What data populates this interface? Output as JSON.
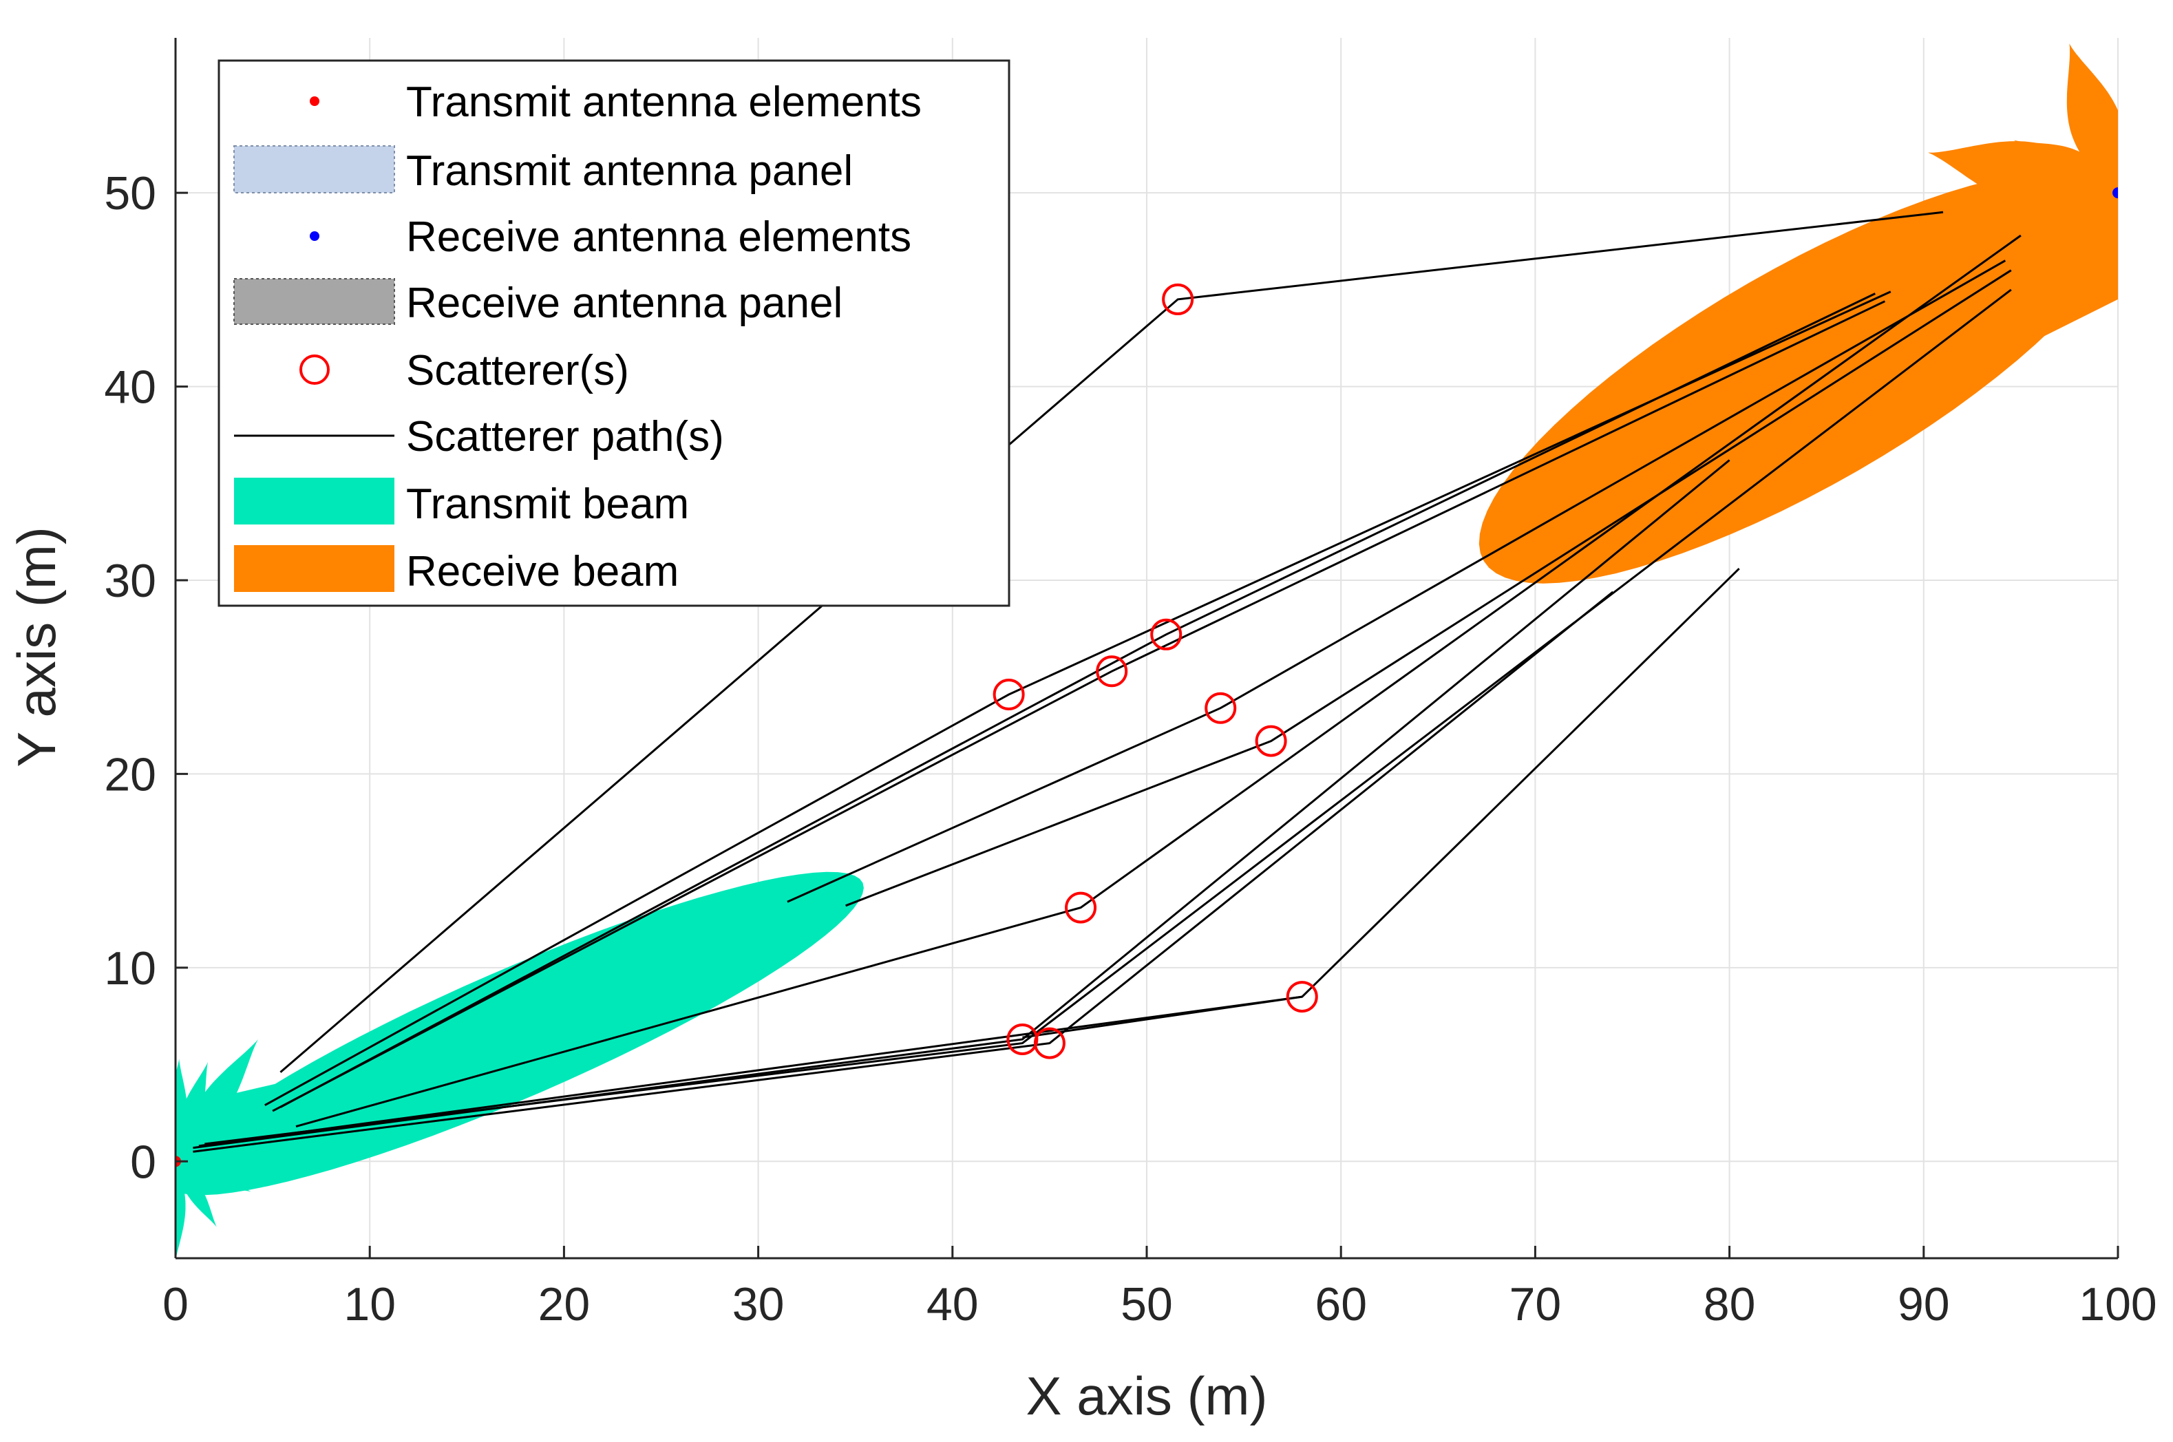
{
  "chart_data": {
    "type": "scatter",
    "title": "",
    "xlabel": "X axis (m)",
    "ylabel": "Y axis (m)",
    "xlim": [
      0,
      100
    ],
    "ylim": [
      -5,
      58
    ],
    "xticks": [
      0,
      10,
      20,
      30,
      40,
      50,
      60,
      70,
      80,
      90,
      100
    ],
    "yticks": [
      0,
      10,
      20,
      30,
      40,
      50
    ],
    "grid": true,
    "legend_position": "top-left",
    "colors": {
      "transmit_element": "#ff0000",
      "transmit_panel": "#c5d3ea",
      "receive_element": "#0000ff",
      "receive_panel": "#a6a6a6",
      "scatterer": "#ff0000",
      "path": "#000000",
      "transmit_beam": "#00e8b8",
      "receive_beam": "#ff8400",
      "grid": "#e2e2e2",
      "axis": "#262626"
    },
    "legend": [
      {
        "key": "tx_elements",
        "label": "Transmit antenna elements"
      },
      {
        "key": "tx_panel",
        "label": "Transmit antenna panel"
      },
      {
        "key": "rx_elements",
        "label": "Receive antenna elements"
      },
      {
        "key": "rx_panel",
        "label": "Receive antenna panel"
      },
      {
        "key": "scatterers",
        "label": "Scatterer(s)"
      },
      {
        "key": "paths",
        "label": "Scatterer path(s)"
      },
      {
        "key": "tx_beam",
        "label": "Transmit beam"
      },
      {
        "key": "rx_beam",
        "label": "Receive beam"
      }
    ],
    "transmit_antenna": {
      "x": 0,
      "y": 0
    },
    "receive_antenna": {
      "x": 100,
      "y": 50
    },
    "scatterers": [
      {
        "x": 51.6,
        "y": 44.5
      },
      {
        "x": 51.0,
        "y": 27.2
      },
      {
        "x": 48.2,
        "y": 25.3
      },
      {
        "x": 42.9,
        "y": 24.1
      },
      {
        "x": 53.8,
        "y": 23.4
      },
      {
        "x": 56.4,
        "y": 21.7
      },
      {
        "x": 46.6,
        "y": 13.1
      },
      {
        "x": 58.0,
        "y": 8.5
      },
      {
        "x": 43.6,
        "y": 6.3
      },
      {
        "x": 45.0,
        "y": 6.1
      }
    ],
    "paths": [
      {
        "from": [
          5.4,
          4.6
        ],
        "via": [
          51.6,
          44.5
        ],
        "to": [
          91.0,
          49.0
        ]
      },
      {
        "from": [
          4.6,
          2.9
        ],
        "via": [
          42.9,
          24.1
        ],
        "to": [
          88.3,
          44.9
        ]
      },
      {
        "from": [
          5.0,
          2.6
        ],
        "via": [
          48.2,
          25.3
        ],
        "to": [
          88.0,
          44.4
        ]
      },
      {
        "from": [
          5.4,
          2.8
        ],
        "via": [
          51.0,
          27.2
        ],
        "to": [
          87.5,
          44.8
        ]
      },
      {
        "from": [
          6.2,
          1.8
        ],
        "via": [
          46.6,
          13.1
        ],
        "to": [
          95.0,
          47.8
        ]
      },
      {
        "from": [
          31.5,
          13.4
        ],
        "via": [
          53.8,
          23.4
        ],
        "to": [
          94.2,
          46.5
        ]
      },
      {
        "from": [
          34.5,
          13.2
        ],
        "via": [
          56.4,
          21.7
        ],
        "to": [
          94.5,
          46.0
        ]
      },
      {
        "from": [
          0.9,
          0.7
        ],
        "via": [
          43.6,
          6.3
        ],
        "to": [
          80.0,
          36.2
        ]
      },
      {
        "from": [
          0.9,
          0.5
        ],
        "via": [
          45.0,
          6.1
        ],
        "to": [
          74.0,
          29.4
        ]
      },
      {
        "from": [
          1.5,
          0.9
        ],
        "via": [
          43.6,
          6.1
        ],
        "to": [
          94.5,
          45.0
        ]
      },
      {
        "from": [
          1.2,
          0.8
        ],
        "via": [
          58.0,
          8.5
        ],
        "to": [
          80.5,
          30.6
        ]
      },
      {
        "from": [
          43.6,
          6.4
        ],
        "via": [
          58.0,
          8.5
        ],
        "to": [
          58.0,
          8.5
        ]
      }
    ],
    "transmit_beam": {
      "main_lobe": {
        "center": [
          17.5,
          6.6
        ],
        "half_length": 19.5,
        "half_width": 3.3,
        "angle_deg": 23.5
      },
      "side_lobes": [
        {
          "angle_deg": 56,
          "length": 7.6
        },
        {
          "angle_deg": 72,
          "length": 5.4
        },
        {
          "angle_deg": 88,
          "length": 5.3
        },
        {
          "angle_deg": -90,
          "length": 5.2
        },
        {
          "angle_deg": -58,
          "length": 4.0
        },
        {
          "angle_deg": -22,
          "length": 4.2
        },
        {
          "angle_deg": 2,
          "length": 8.3
        },
        {
          "angle_deg": -5,
          "length": 2.2
        },
        {
          "angle_deg": 38,
          "length": 3.2
        }
      ]
    },
    "receive_beam": {
      "main_lobe": {
        "center": [
          83.8,
          40.5
        ],
        "half_length": 19.0,
        "half_width": 5.6,
        "angle_deg": 30.0
      },
      "side_lobes": [
        {
          "angle_deg": 108,
          "length": 8.1
        },
        {
          "angle_deg": 168,
          "length": 10.0
        },
        {
          "angle_deg": 153,
          "length": 6.0
        },
        {
          "angle_deg": 90,
          "length": 3.0
        }
      ]
    }
  }
}
